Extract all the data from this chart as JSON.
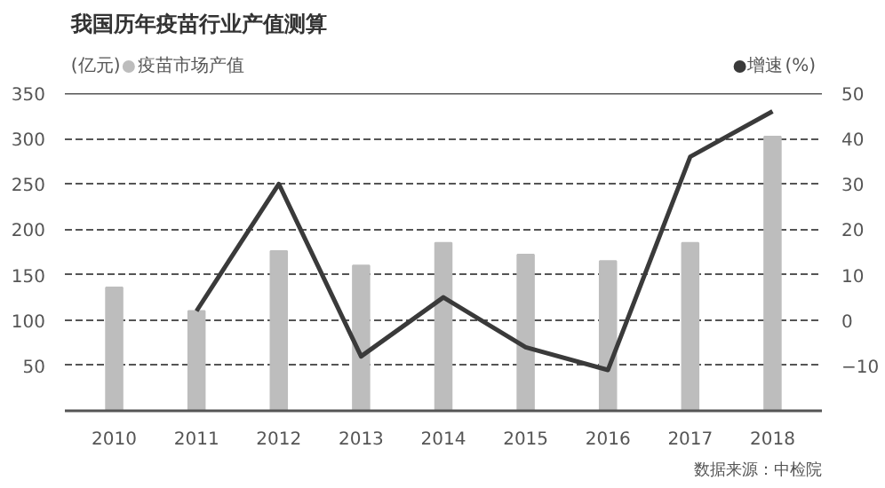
{
  "chart_data": {
    "type": "bar",
    "title": "我国历年疫苗行业产值测算",
    "ylabel": "(亿元)",
    "y2label": "(%)",
    "categories": [
      "2010",
      "2011",
      "2012",
      "2013",
      "2014",
      "2015",
      "2016",
      "2017",
      "2018"
    ],
    "series": [
      {
        "name": "疫苗市场产值",
        "color": "#bdbdbd",
        "values": [
          136,
          110,
          176,
          160,
          185,
          172,
          165,
          185,
          302
        ]
      },
      {
        "name": "增速",
        "type": "line",
        "axis": "y2",
        "color": "#3a3a3a",
        "values": [
          null,
          2,
          30,
          -8,
          5,
          -6,
          -11,
          36,
          46
        ]
      }
    ],
    "ylim": [
      0,
      350
    ],
    "yticks": [
      50,
      100,
      150,
      200,
      250,
      300,
      350
    ],
    "y2lim": [
      -20,
      50
    ],
    "y2ticks": [
      -10,
      0,
      10,
      20,
      30,
      40,
      50
    ],
    "grid": "y",
    "legend": "top",
    "marker": "none",
    "line_style": "solid",
    "annotations": [
      "数据来源：中检院"
    ]
  }
}
